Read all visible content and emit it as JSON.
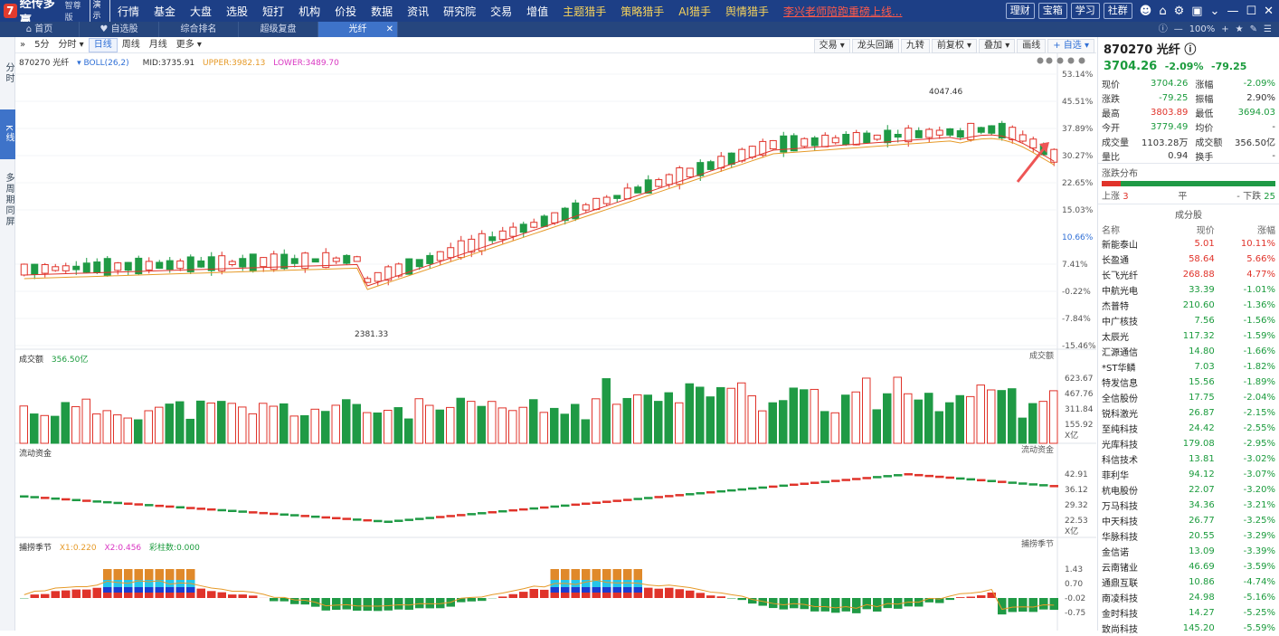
{
  "app": {
    "name": "经传多赢",
    "edition": "智尊版",
    "demo": "演示"
  },
  "menu": [
    {
      "label": "行情"
    },
    {
      "label": "基金"
    },
    {
      "label": "大盘"
    },
    {
      "label": "选股"
    },
    {
      "label": "短打"
    },
    {
      "label": "机构"
    },
    {
      "label": "价投"
    },
    {
      "label": "数据"
    },
    {
      "label": "资讯"
    },
    {
      "label": "研究院"
    },
    {
      "label": "交易"
    },
    {
      "label": "增值"
    },
    {
      "label": "主题猎手"
    },
    {
      "label": "策略猎手"
    },
    {
      "label": "AI猎手"
    },
    {
      "label": "舆情猎手"
    },
    {
      "label": "李兴老师陪跑重磅上线..."
    }
  ],
  "top_buttons": [
    "理财",
    "宝箱",
    "学习",
    "社群"
  ],
  "tabs": [
    {
      "label": "首页"
    },
    {
      "label": "自选股"
    },
    {
      "label": "综合排名"
    },
    {
      "label": "超级复盘"
    },
    {
      "label": "光纤"
    }
  ],
  "zoom": "100%",
  "left_tabs": [
    "分时",
    "K线",
    "多周期同屏"
  ],
  "toolbar": {
    "left": [
      "5分",
      "分时",
      "日线",
      "周线",
      "月线",
      "更多"
    ],
    "right": [
      "交易",
      "龙头回踊",
      "九转",
      "前复权",
      "叠加",
      "画线",
      "自选"
    ]
  },
  "indicator": {
    "code": "870270 光纤",
    "boll": "BOLL(26,2)",
    "mid": "MID:3735.91",
    "upper": "UPPER:3982.13",
    "lower": "LOWER:3489.70"
  },
  "price_axis": [
    "53.14%",
    "45.51%",
    "37.89%",
    "30.27%",
    "22.65%",
    "15.03%",
    "10.66%",
    "7.41%",
    "-0.22%",
    "-7.84%",
    "-15.46%"
  ],
  "annotations": {
    "high": "4047.46",
    "low": "2381.33"
  },
  "volume": {
    "title": "成交额",
    "value": "356.50亿",
    "axis": [
      "623.67",
      "467.76",
      "311.84",
      "155.92"
    ],
    "unit": "X亿",
    "label": "成交额"
  },
  "flow": {
    "title": "流动资金",
    "label": "流动资金",
    "axis": [
      "42.91",
      "36.12",
      "29.32",
      "22.53"
    ],
    "unit": "X亿"
  },
  "capture": {
    "title": "捕捞季节",
    "x1": "X1:0.220",
    "x2": "X2:0.456",
    "col": "彩柱数:0.000",
    "label": "捕捞季节",
    "axis": [
      "1.43",
      "0.70",
      "-0.02",
      "-0.75"
    ]
  },
  "quote": {
    "title": "870270 光纤",
    "price": "3704.26",
    "change_pct": "-2.09%",
    "change": "-79.25",
    "rows": [
      [
        "现价",
        "3704.26",
        "涨幅",
        "-2.09%"
      ],
      [
        "涨跌",
        "-79.25",
        "振幅",
        "2.90%"
      ],
      [
        "最高",
        "3803.89",
        "最低",
        "3694.03"
      ],
      [
        "今开",
        "3779.49",
        "均价",
        "-"
      ],
      [
        "成交量",
        "1103.28万",
        "成交额",
        "356.50亿"
      ],
      [
        "量比",
        "0.94",
        "换手",
        "-"
      ]
    ]
  },
  "distribution": {
    "title": "涨跌分布",
    "up_label": "上涨",
    "up": "3",
    "flat_label": "平",
    "flat": "-",
    "down_label": "下跌",
    "down": "25",
    "up_ratio": 0.107
  },
  "constituents": {
    "title": "成分股",
    "headers": [
      "名称",
      "现价",
      "涨幅"
    ],
    "rows": [
      [
        "新能泰山",
        "5.01",
        "10.11%"
      ],
      [
        "长盈通",
        "58.64",
        "5.66%"
      ],
      [
        "长飞光纤",
        "268.88",
        "4.77%"
      ],
      [
        "中航光电",
        "33.39",
        "-1.01%"
      ],
      [
        "杰普特",
        "210.60",
        "-1.36%"
      ],
      [
        "中广核技",
        "7.56",
        "-1.56%"
      ],
      [
        "太辰光",
        "117.32",
        "-1.59%"
      ],
      [
        "汇源通信",
        "14.80",
        "-1.66%"
      ],
      [
        "*ST华鳞",
        "7.03",
        "-1.82%"
      ],
      [
        "特发信息",
        "15.56",
        "-1.89%"
      ],
      [
        "全信股份",
        "17.75",
        "-2.04%"
      ],
      [
        "锐科激光",
        "26.87",
        "-2.15%"
      ],
      [
        "至纯科技",
        "24.42",
        "-2.55%"
      ],
      [
        "光库科技",
        "179.08",
        "-2.95%"
      ],
      [
        "科信技术",
        "13.81",
        "-3.02%"
      ],
      [
        "菲利华",
        "94.12",
        "-3.07%"
      ],
      [
        "杭电股份",
        "22.07",
        "-3.20%"
      ],
      [
        "万马科技",
        "34.36",
        "-3.21%"
      ],
      [
        "中天科技",
        "26.77",
        "-3.25%"
      ],
      [
        "华脉科技",
        "20.55",
        "-3.29%"
      ],
      [
        "金信诺",
        "13.09",
        "-3.39%"
      ],
      [
        "云南锗业",
        "46.69",
        "-3.59%"
      ],
      [
        "通鼎互联",
        "10.86",
        "-4.74%"
      ],
      [
        "南凌科技",
        "24.98",
        "-5.16%"
      ],
      [
        "金时科技",
        "14.27",
        "-5.25%"
      ],
      [
        "致尚科技",
        "145.20",
        "-5.59%"
      ]
    ]
  },
  "colors": {
    "up": "#e0332a",
    "down": "#1f9a45",
    "nav": "#1d3f86",
    "accent": "#3e73c9"
  }
}
